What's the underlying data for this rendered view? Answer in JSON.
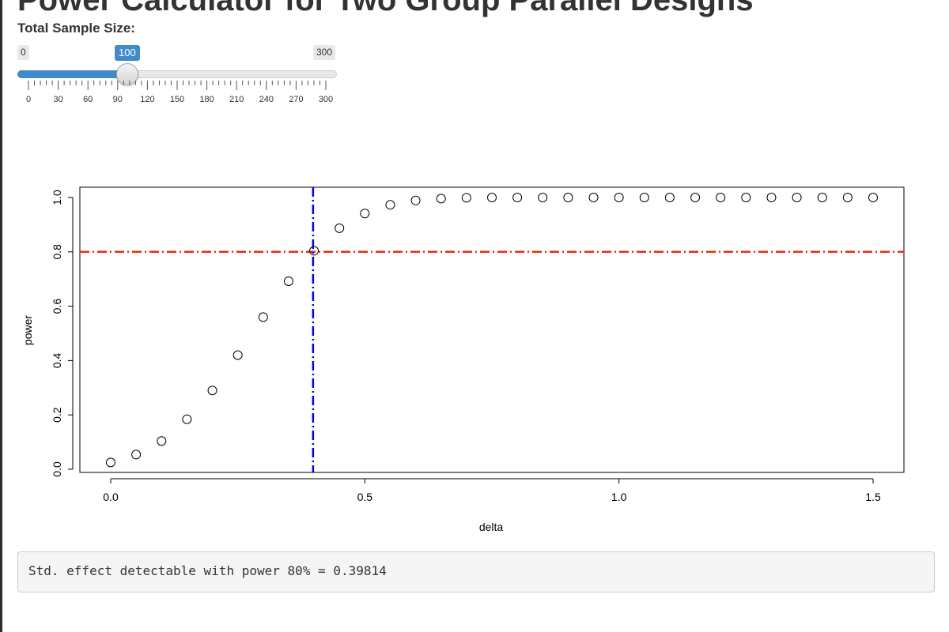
{
  "page": {
    "title": "Power Calculator for Two Group Parallel Designs"
  },
  "slider": {
    "label": "Total Sample Size:",
    "min": 0,
    "max": 300,
    "value": 100,
    "min_label": "0",
    "max_label": "300",
    "value_label": "100",
    "tick_labels": [
      "0",
      "30",
      "60",
      "90",
      "120",
      "150",
      "180",
      "210",
      "240",
      "270",
      "300"
    ],
    "fill_color": "#428bca"
  },
  "chart_data": {
    "type": "scatter",
    "title": "",
    "xlabel": "delta",
    "ylabel": "power",
    "xlim": [
      0,
      1.5
    ],
    "ylim": [
      0,
      1
    ],
    "x_ticks": [
      "0.0",
      "0.5",
      "1.0",
      "1.5"
    ],
    "y_ticks": [
      "0.0",
      "0.2",
      "0.4",
      "0.6",
      "0.8",
      "1.0"
    ],
    "x": [
      0,
      0.05,
      0.1,
      0.15,
      0.2,
      0.25,
      0.3,
      0.35,
      0.4,
      0.45,
      0.5,
      0.55,
      0.6,
      0.65,
      0.7,
      0.75,
      0.8,
      0.85,
      0.9,
      0.95,
      1.0,
      1.05,
      1.1,
      1.15,
      1.2,
      1.25,
      1.3,
      1.35,
      1.4,
      1.45,
      1.5
    ],
    "y": [
      0.025,
      0.054,
      0.104,
      0.184,
      0.29,
      0.42,
      0.56,
      0.692,
      0.804,
      0.887,
      0.941,
      0.973,
      0.989,
      0.996,
      0.999,
      1.0,
      1.0,
      1.0,
      1.0,
      1.0,
      1.0,
      1.0,
      1.0,
      1.0,
      1.0,
      1.0,
      1.0,
      1.0,
      1.0,
      1.0,
      1.0
    ],
    "reference_lines": [
      {
        "orientation": "horizontal",
        "value": 0.8,
        "color": "#e8291b",
        "style": "dash-dot"
      },
      {
        "orientation": "vertical",
        "value": 0.39814,
        "color": "#0000ee",
        "style": "dash-dot"
      }
    ],
    "grid": false,
    "marker": "open-circle"
  },
  "output": {
    "text": "Std. effect detectable with power 80% = 0.39814"
  }
}
